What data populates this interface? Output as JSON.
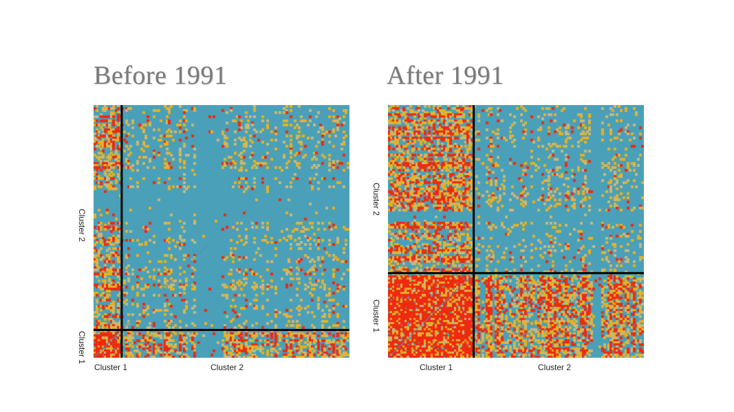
{
  "colors": {
    "background": "#4aa0b8",
    "low": "#4aa0b8",
    "mid_light": "#c8b878",
    "mid": "#e8b020",
    "high": "#ee2a10",
    "boundary": "#000000",
    "diagonal": "#5a8fb5"
  },
  "chart_data": [
    {
      "type": "heatmap",
      "title": "Before 1991",
      "xlabel_ticks": [
        "Cluster 1",
        "Cluster 2"
      ],
      "ylabel_ticks": [
        "Cluster 1",
        "Cluster 2"
      ],
      "cluster_boundary_fraction": 0.11,
      "cluster1_dense_share": 0.11,
      "description_levels": [
        "low",
        "mid",
        "high"
      ]
    },
    {
      "type": "heatmap",
      "title": "After 1991",
      "xlabel_ticks": [
        "Cluster 1",
        "Cluster 2"
      ],
      "ylabel_ticks": [
        "Cluster 1",
        "Cluster 2"
      ],
      "cluster_boundary_fraction": 0.335,
      "cluster1_dense_share": 0.335,
      "description_levels": [
        "low",
        "mid",
        "high"
      ]
    }
  ]
}
